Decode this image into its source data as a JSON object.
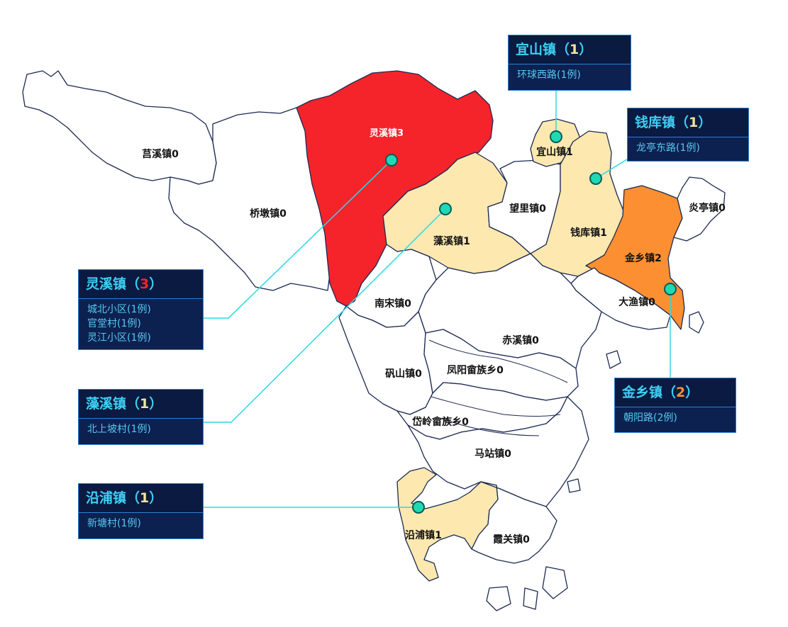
{
  "colors": {
    "high": "#f5242b",
    "mid": "#fb8f31",
    "low": "#fde8b0",
    "none": "#ffffff",
    "border": "#1c2a52",
    "leader": "#2ad8e6",
    "marker": "#1fd9b4",
    "card_bg": "#0c2150",
    "card_title": "#3ed0f5",
    "card_item": "#57c8f0",
    "count_1": "#f3e3a0",
    "count_2": "#fb8f31",
    "count_3": "#f5242b"
  },
  "towns": [
    {
      "id": "juxi",
      "label": "莒溪镇0",
      "count": 0
    },
    {
      "id": "qiaodun",
      "label": "桥墩镇0",
      "count": 0
    },
    {
      "id": "lingxi",
      "label": "灵溪镇3",
      "count": 3
    },
    {
      "id": "zaoxi",
      "label": "藻溪镇1",
      "count": 1
    },
    {
      "id": "wangli",
      "label": "望里镇0",
      "count": 0
    },
    {
      "id": "yishan",
      "label": "宜山镇1",
      "count": 1
    },
    {
      "id": "qianku",
      "label": "钱库镇1",
      "count": 1
    },
    {
      "id": "jinxiang",
      "label": "金乡镇2",
      "count": 2
    },
    {
      "id": "yanting",
      "label": "炎亭镇0",
      "count": 0
    },
    {
      "id": "dayu",
      "label": "大渔镇0",
      "count": 0
    },
    {
      "id": "nansong",
      "label": "南宋镇0",
      "count": 0
    },
    {
      "id": "chixi",
      "label": "赤溪镇0",
      "count": 0
    },
    {
      "id": "fanshan",
      "label": "矾山镇0",
      "count": 0
    },
    {
      "id": "fengyang",
      "label": "凤阳畲族乡0",
      "count": 0
    },
    {
      "id": "dailing",
      "label": "岱岭畲族乡0",
      "count": 0
    },
    {
      "id": "mazhan",
      "label": "马站镇0",
      "count": 0
    },
    {
      "id": "yanpu",
      "label": "沿浦镇1",
      "count": 1
    },
    {
      "id": "xiaguan",
      "label": "霞关镇0",
      "count": 0
    }
  ],
  "callouts": [
    {
      "id": "yishan",
      "town": "宜山镇",
      "open": "（",
      "count": "1",
      "close": "）",
      "items": [
        "环球西路(1例)"
      ]
    },
    {
      "id": "qianku",
      "town": "钱库镇",
      "open": "（",
      "count": "1",
      "close": "）",
      "items": [
        "龙亭东路(1例)"
      ]
    },
    {
      "id": "lingxi",
      "town": "灵溪镇",
      "open": "（",
      "count": "3",
      "close": "）",
      "items": [
        "城北小区(1例)",
        "官堂村(1例)",
        "灵江小区(1例)"
      ]
    },
    {
      "id": "zaoxi",
      "town": "藻溪镇",
      "open": "（",
      "count": "1",
      "close": "）",
      "items": [
        "北上坡村(1例)"
      ]
    },
    {
      "id": "jinxiang",
      "town": "金乡镇",
      "open": "（",
      "count": "2",
      "close": "）",
      "items": [
        "朝阳路(2例)"
      ]
    },
    {
      "id": "yanpu",
      "town": "沿浦镇",
      "open": "（",
      "count": "1",
      "close": "）",
      "items": [
        "新塘村(1例)"
      ]
    }
  ]
}
